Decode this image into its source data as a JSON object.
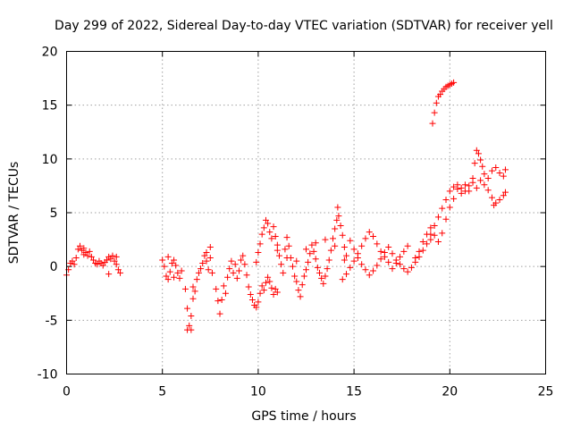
{
  "chart_data": {
    "type": "scatter",
    "title": "Day 299 of 2022, Sidereal Day-to-day VTEC variation (SDTVAR) for receiver yell",
    "xlabel": "GPS time / hours",
    "ylabel": "SDTVAR / TECUs",
    "xlim": [
      0,
      25
    ],
    "ylim": [
      -10,
      20
    ],
    "xticks": [
      0,
      5,
      10,
      15,
      20,
      25
    ],
    "yticks": [
      -10,
      -5,
      0,
      5,
      10,
      15,
      20
    ],
    "grid": true,
    "marker": "plus",
    "series": [
      {
        "name": "SDTVAR",
        "color": "#ff0000",
        "points": [
          [
            0.0,
            -0.8
          ],
          [
            0.1,
            -0.3
          ],
          [
            0.2,
            0.3
          ],
          [
            0.3,
            0.5
          ],
          [
            0.4,
            0.2
          ],
          [
            0.5,
            0.8
          ],
          [
            0.6,
            1.6
          ],
          [
            0.7,
            1.9
          ],
          [
            0.8,
            1.5
          ],
          [
            0.9,
            1.7
          ],
          [
            1.0,
            1.3
          ],
          [
            1.1,
            1.0
          ],
          [
            1.2,
            1.4
          ],
          [
            1.3,
            0.9
          ],
          [
            1.4,
            0.6
          ],
          [
            1.5,
            0.3
          ],
          [
            1.6,
            0.2
          ],
          [
            1.7,
            0.5
          ],
          [
            1.8,
            0.3
          ],
          [
            1.9,
            0.1
          ],
          [
            2.0,
            0.4
          ],
          [
            2.1,
            0.6
          ],
          [
            2.2,
            0.9
          ],
          [
            2.3,
            0.7
          ],
          [
            2.4,
            1.0
          ],
          [
            2.5,
            0.5
          ],
          [
            2.6,
            0.2
          ],
          [
            2.7,
            -0.3
          ],
          [
            2.8,
            -0.6
          ],
          [
            2.2,
            -0.7
          ],
          [
            0.9,
            1.1
          ],
          [
            2.6,
            0.9
          ],
          [
            5.0,
            0.6
          ],
          [
            5.1,
            0.0
          ],
          [
            5.2,
            -0.9
          ],
          [
            5.3,
            -1.2
          ],
          [
            5.4,
            -0.5
          ],
          [
            5.5,
            0.3
          ],
          [
            5.6,
            0.6
          ],
          [
            5.7,
            0.1
          ],
          [
            5.8,
            -0.6
          ],
          [
            5.9,
            -1.1
          ],
          [
            6.0,
            -0.4
          ],
          [
            5.3,
            0.9
          ],
          [
            5.6,
            -1.0
          ],
          [
            6.2,
            -2.1
          ],
          [
            6.3,
            -3.9
          ],
          [
            6.4,
            -5.5
          ],
          [
            6.5,
            -4.6
          ],
          [
            6.6,
            -3.0
          ],
          [
            6.7,
            -2.3
          ],
          [
            6.8,
            -1.2
          ],
          [
            6.9,
            -0.6
          ],
          [
            6.5,
            -5.9
          ],
          [
            6.3,
            -5.9
          ],
          [
            6.6,
            -1.9
          ],
          [
            7.0,
            -0.2
          ],
          [
            7.1,
            0.3
          ],
          [
            7.2,
            1.0
          ],
          [
            7.3,
            0.5
          ],
          [
            7.4,
            -0.3
          ],
          [
            7.5,
            1.8
          ],
          [
            7.5,
            0.8
          ],
          [
            7.6,
            -0.6
          ],
          [
            7.3,
            1.3
          ],
          [
            7.8,
            -2.1
          ],
          [
            7.9,
            -3.2
          ],
          [
            8.0,
            -4.4
          ],
          [
            8.1,
            -3.1
          ],
          [
            8.2,
            -1.8
          ],
          [
            8.3,
            -2.5
          ],
          [
            8.4,
            -1.0
          ],
          [
            8.5,
            -0.2
          ],
          [
            8.6,
            0.5
          ],
          [
            8.7,
            -0.6
          ],
          [
            8.8,
            0.2
          ],
          [
            8.9,
            -1.1
          ],
          [
            9.0,
            -0.4
          ],
          [
            9.1,
            0.6
          ],
          [
            9.2,
            1.0
          ],
          [
            9.3,
            0.2
          ],
          [
            9.4,
            -0.8
          ],
          [
            9.5,
            -1.9
          ],
          [
            9.6,
            -2.6
          ],
          [
            9.7,
            -3.1
          ],
          [
            9.8,
            -3.6
          ],
          [
            9.9,
            -3.8
          ],
          [
            10.0,
            -3.3
          ],
          [
            10.1,
            -2.5
          ],
          [
            10.2,
            -1.8
          ],
          [
            10.3,
            -2.2
          ],
          [
            10.4,
            -1.5
          ],
          [
            10.5,
            -1.0
          ],
          [
            10.6,
            -1.4
          ],
          [
            10.7,
            -2.0
          ],
          [
            10.8,
            -2.6
          ],
          [
            10.9,
            -2.1
          ],
          [
            11.0,
            -2.4
          ],
          [
            9.9,
            0.4
          ],
          [
            10.0,
            1.3
          ],
          [
            10.1,
            2.1
          ],
          [
            10.2,
            3.0
          ],
          [
            10.3,
            3.6
          ],
          [
            10.4,
            4.3
          ],
          [
            10.5,
            4.0
          ],
          [
            10.6,
            3.2
          ],
          [
            10.7,
            2.6
          ],
          [
            10.8,
            3.7
          ],
          [
            10.9,
            2.8
          ],
          [
            11.0,
            2.0
          ],
          [
            11.1,
            1.0
          ],
          [
            11.2,
            0.2
          ],
          [
            11.3,
            -0.6
          ],
          [
            11.4,
            1.6
          ],
          [
            11.5,
            2.7
          ],
          [
            11.6,
            1.9
          ],
          [
            11.7,
            0.8
          ],
          [
            11.8,
            0.0
          ],
          [
            11.9,
            -0.9
          ],
          [
            12.0,
            -1.4
          ],
          [
            12.1,
            -2.2
          ],
          [
            12.2,
            -2.8
          ],
          [
            12.3,
            -1.7
          ],
          [
            12.4,
            -0.9
          ],
          [
            12.5,
            -0.3
          ],
          [
            12.6,
            0.4
          ],
          [
            12.7,
            1.2
          ],
          [
            12.8,
            2.0
          ],
          [
            12.9,
            1.4
          ],
          [
            13.0,
            0.7
          ],
          [
            13.1,
            -0.1
          ],
          [
            13.2,
            -0.6
          ],
          [
            13.3,
            -1.1
          ],
          [
            13.4,
            -1.6
          ],
          [
            13.5,
            -0.9
          ],
          [
            13.6,
            -0.2
          ],
          [
            13.7,
            0.6
          ],
          [
            13.8,
            1.5
          ],
          [
            13.9,
            2.6
          ],
          [
            14.0,
            3.5
          ],
          [
            14.1,
            4.3
          ],
          [
            14.15,
            5.5
          ],
          [
            14.2,
            4.7
          ],
          [
            14.3,
            3.8
          ],
          [
            14.4,
            2.9
          ],
          [
            14.5,
            1.8
          ],
          [
            14.6,
            1.0
          ],
          [
            14.4,
            -1.2
          ],
          [
            14.6,
            -0.7
          ],
          [
            14.8,
            -0.1
          ],
          [
            15.0,
            0.5
          ],
          [
            15.2,
            1.2
          ],
          [
            15.4,
            1.9
          ],
          [
            15.6,
            2.6
          ],
          [
            15.8,
            3.2
          ],
          [
            16.0,
            2.8
          ],
          [
            16.2,
            2.1
          ],
          [
            16.4,
            1.4
          ],
          [
            16.6,
            0.9
          ],
          [
            16.8,
            0.4
          ],
          [
            17.0,
            -0.2
          ],
          [
            17.2,
            0.3
          ],
          [
            17.4,
            0.9
          ],
          [
            17.6,
            1.4
          ],
          [
            17.8,
            1.9
          ],
          [
            14.8,
            2.4
          ],
          [
            15.0,
            1.6
          ],
          [
            15.2,
            0.8
          ],
          [
            15.4,
            0.2
          ],
          [
            15.6,
            -0.3
          ],
          [
            15.8,
            -0.8
          ],
          [
            16.0,
            -0.4
          ],
          [
            16.2,
            0.1
          ],
          [
            16.4,
            0.7
          ],
          [
            16.6,
            1.3
          ],
          [
            16.8,
            1.8
          ],
          [
            17.0,
            1.2
          ],
          [
            17.2,
            0.6
          ],
          [
            17.4,
            0.2
          ],
          [
            17.6,
            -0.2
          ],
          [
            17.8,
            -0.5
          ],
          [
            18.0,
            -0.1
          ],
          [
            18.2,
            0.4
          ],
          [
            18.4,
            0.9
          ],
          [
            18.6,
            1.5
          ],
          [
            18.8,
            2.1
          ],
          [
            19.0,
            2.5
          ],
          [
            11.0,
            1.5
          ],
          [
            11.5,
            0.8
          ],
          [
            12.0,
            0.5
          ],
          [
            12.5,
            1.6
          ],
          [
            13.0,
            2.2
          ],
          [
            13.5,
            2.5
          ],
          [
            14.0,
            1.9
          ],
          [
            14.5,
            0.6
          ],
          [
            19.0,
            3.0
          ],
          [
            19.2,
            3.8
          ],
          [
            19.4,
            4.6
          ],
          [
            19.6,
            5.4
          ],
          [
            19.8,
            6.2
          ],
          [
            20.0,
            7.0
          ],
          [
            20.2,
            7.4
          ],
          [
            20.4,
            7.6
          ],
          [
            20.6,
            7.3
          ],
          [
            20.8,
            7.0
          ],
          [
            21.0,
            7.5
          ],
          [
            21.2,
            8.2
          ],
          [
            21.3,
            9.6
          ],
          [
            21.4,
            10.8
          ],
          [
            21.5,
            10.5
          ],
          [
            21.6,
            9.9
          ],
          [
            21.7,
            9.3
          ],
          [
            21.8,
            8.6
          ],
          [
            22.0,
            8.2
          ],
          [
            22.2,
            8.9
          ],
          [
            22.4,
            9.2
          ],
          [
            22.6,
            8.7
          ],
          [
            22.8,
            8.4
          ],
          [
            22.9,
            9.0
          ],
          [
            18.2,
            0.8
          ],
          [
            18.4,
            1.4
          ],
          [
            18.6,
            2.3
          ],
          [
            18.8,
            3.0
          ],
          [
            19.0,
            3.6
          ],
          [
            19.2,
            2.9
          ],
          [
            19.4,
            2.3
          ],
          [
            19.6,
            3.1
          ],
          [
            19.8,
            4.4
          ],
          [
            20.0,
            5.5
          ],
          [
            20.2,
            6.3
          ],
          [
            20.4,
            7.2
          ],
          [
            20.6,
            6.8
          ],
          [
            20.8,
            7.6
          ],
          [
            21.0,
            7.0
          ],
          [
            21.2,
            7.8
          ],
          [
            21.4,
            7.3
          ],
          [
            21.6,
            8.0
          ],
          [
            21.8,
            7.6
          ],
          [
            22.0,
            7.1
          ],
          [
            22.2,
            6.4
          ],
          [
            22.3,
            5.7
          ],
          [
            22.4,
            5.9
          ],
          [
            22.6,
            6.2
          ],
          [
            22.8,
            6.6
          ],
          [
            22.9,
            6.9
          ],
          [
            19.1,
            13.3
          ],
          [
            19.2,
            14.3
          ],
          [
            19.3,
            15.2
          ],
          [
            19.4,
            15.8
          ],
          [
            19.5,
            16.0
          ],
          [
            19.6,
            16.3
          ],
          [
            19.7,
            16.5
          ],
          [
            19.8,
            16.7
          ],
          [
            19.9,
            16.8
          ],
          [
            20.0,
            16.9
          ],
          [
            20.1,
            17.0
          ],
          [
            20.2,
            17.1
          ]
        ]
      }
    ]
  }
}
